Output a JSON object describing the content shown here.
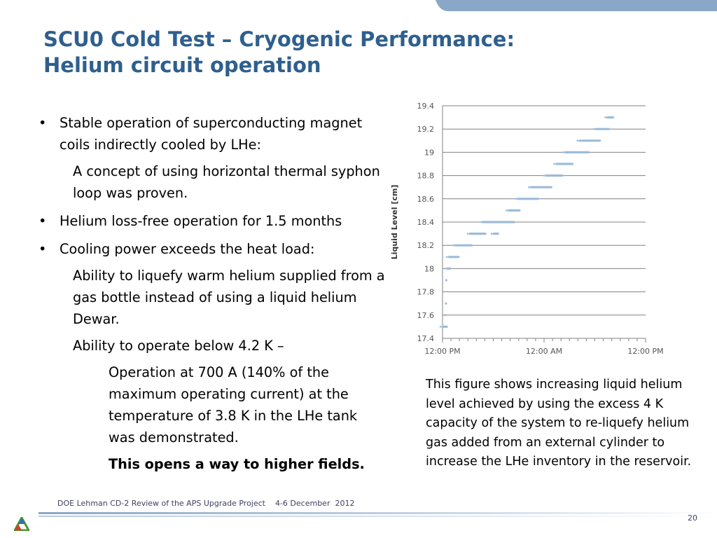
{
  "slide": {
    "title_line1": "SCU0 Cold Test – Cryogenic Performance:",
    "title_line2": "Helium circuit operation",
    "bullets": [
      {
        "level": 1,
        "text": "Stable operation of superconducting magnet coils indirectly cooled by LHe:"
      },
      {
        "level": 2,
        "text": "A concept of using horizontal thermal syphon loop was proven."
      },
      {
        "level": 1,
        "text": "Helium loss-free operation for 1.5 months"
      },
      {
        "level": 1,
        "text": "Cooling power exceeds the heat load:"
      },
      {
        "level": 2,
        "text": "Ability to liquefy warm helium supplied from a gas bottle instead of using a liquid helium Dewar."
      },
      {
        "level": 2,
        "text": "Ability to operate below 4.2 K –"
      },
      {
        "level": 3,
        "text": "Operation at 700 A (140% of the maximum operating current) at the temperature of 3.8 K in the LHe tank was demonstrated."
      },
      {
        "level": 3,
        "text": "This opens a way to higher fields.",
        "bold": true
      }
    ],
    "caption": "This figure shows increasing liquid helium level achieved by using the excess 4 K capacity of the system to re-liquefy helium gas added from an external cylinder to increase the LHe inventory in the reservoir.",
    "footer": "DOE Lehman CD-2 Review of the APS Upgrade Project    4-6 December  2012",
    "page_number": "20"
  },
  "colors": {
    "title": "#2e5f8e",
    "band": "#8aa7c7",
    "points": "#9dbcd8",
    "grid": "#808080"
  },
  "chart_data": {
    "type": "scatter",
    "title": "",
    "xlabel": "",
    "ylabel": "Liquid Level [cm]",
    "xlim": [
      0,
      48
    ],
    "ylim": [
      17.4,
      19.4
    ],
    "x_ticks": [
      0,
      24,
      48
    ],
    "x_tick_labels": [
      "12:00 PM",
      "12:00 AM",
      "12:00 PM"
    ],
    "y_ticks": [
      17.4,
      17.6,
      17.8,
      18.0,
      18.2,
      18.4,
      18.6,
      18.8,
      19.0,
      19.2,
      19.4
    ],
    "y_tick_labels": [
      "17.4",
      "17.6",
      "17.8",
      "18",
      "18.2",
      "18.4",
      "18.6",
      "18.8",
      "19",
      "19.2",
      "19.4"
    ],
    "grid": "horizontal",
    "legend": "none",
    "series": [
      {
        "segments": [
          {
            "x": [
              0.0,
              1.0
            ],
            "y": 17.5
          },
          {
            "x": [
              0.7,
              0.7
            ],
            "y": 17.6
          },
          {
            "x": [
              0.8,
              0.8
            ],
            "y": 17.7
          },
          {
            "x": [
              0.9,
              0.9
            ],
            "y": 17.9
          },
          {
            "x": [
              1.1,
              1.8
            ],
            "y": 18.0
          },
          {
            "x": [
              1.5,
              3.8
            ],
            "y": 18.1
          },
          {
            "x": [
              3.0,
              6.9
            ],
            "y": 18.2
          },
          {
            "x": [
              6.5,
              10.1
            ],
            "y": 18.3
          },
          {
            "x": [
              12.1,
              13.1
            ],
            "y": 18.3
          },
          {
            "x": [
              9.5,
              16.9
            ],
            "y": 18.4
          },
          {
            "x": [
              15.6,
              18.2
            ],
            "y": 18.5
          },
          {
            "x": [
              17.8,
              22.6
            ],
            "y": 18.6
          },
          {
            "x": [
              20.9,
              25.7
            ],
            "y": 18.7
          },
          {
            "x": [
              24.5,
              28.3
            ],
            "y": 18.8
          },
          {
            "x": [
              26.9,
              30.7
            ],
            "y": 18.9
          },
          {
            "x": [
              29.0,
              34.5
            ],
            "y": 19.0
          },
          {
            "x": [
              32.4,
              37.2
            ],
            "y": 19.1
          },
          {
            "x": [
              36.2,
              39.3
            ],
            "y": 19.2
          },
          {
            "x": [
              39.0,
              40.3
            ],
            "y": 19.3
          }
        ]
      }
    ]
  }
}
